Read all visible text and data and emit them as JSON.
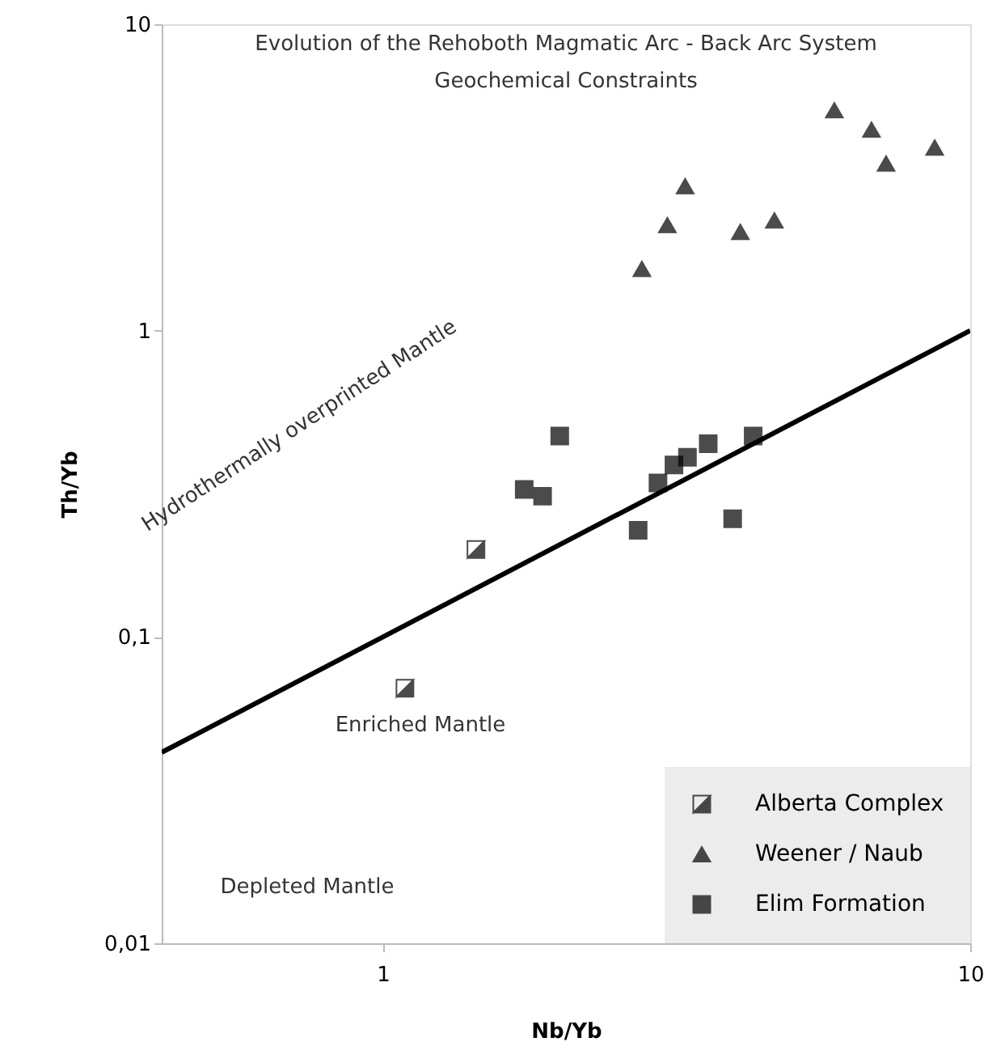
{
  "chart_data": {
    "type": "scatter",
    "title": "Evolution of the Rehoboth Magmatic Arc - Back Arc System",
    "subtitle": "Geochemical Constraints",
    "xlabel": "Nb/Yb",
    "ylabel": "Th/Yb",
    "log": "xy",
    "grid": false,
    "legend": "bottom right",
    "xlim": [
      0.42,
      10
    ],
    "xticks": [
      1,
      10
    ],
    "ylim": [
      0.01,
      10
    ],
    "yticks": [
      {
        "value": 0.01,
        "label": "0,01"
      },
      {
        "value": 0.1,
        "label": "0,1"
      },
      1,
      10
    ],
    "annotations": [
      "Hydrothermally overprinted Mantle",
      "Enriched Mantle",
      "Depleted Mantle"
    ],
    "series": [
      {
        "name": "Alberta Complex",
        "color": "#000000",
        "marker": "square",
        "x": [
          1.09,
          1.44
        ],
        "values": [
          0.068,
          0.193
        ]
      },
      {
        "name": "Weener / Naub",
        "color": "#000000",
        "marker": "triangle",
        "x": [
          2.76,
          3.05,
          3.27,
          4.06,
          4.64,
          5.87,
          6.79,
          7.19,
          8.7
        ],
        "values": [
          1.59,
          2.21,
          2.96,
          2.1,
          2.29,
          5.24,
          4.53,
          3.51,
          3.96
        ]
      },
      {
        "name": "Elim Formation",
        "color": "#000000",
        "marker": "square",
        "x": [
          2.0,
          1.74,
          1.87,
          2.72,
          2.94,
          3.13,
          3.3,
          3.58,
          4.27,
          3.94
        ],
        "values": [
          0.453,
          0.303,
          0.288,
          0.223,
          0.318,
          0.364,
          0.386,
          0.427,
          0.453,
          0.243
        ]
      },
      {
        "type": "line",
        "color": "#000000",
        "marker": "none",
        "x": [
          0.42,
          10
        ],
        "values": [
          0.042,
          1
        ]
      }
    ]
  }
}
